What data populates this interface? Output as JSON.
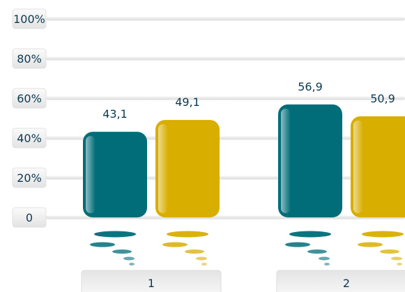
{
  "chart_data": {
    "type": "bar",
    "categories": [
      "1",
      "2"
    ],
    "series": [
      {
        "values": [
          43.1,
          56.9
        ],
        "color": "#006d78"
      },
      {
        "values": [
          49.1,
          50.9
        ],
        "color": "#d8ae00"
      }
    ],
    "value_labels": [
      [
        "43,1",
        "56,9"
      ],
      [
        "49,1",
        "50,9"
      ]
    ],
    "ylim": [
      0,
      100
    ],
    "y_ticks": [
      {
        "value": 0,
        "label": "0"
      },
      {
        "value": 20,
        "label": "20%"
      },
      {
        "value": 40,
        "label": "40%"
      },
      {
        "value": 60,
        "label": "60%"
      },
      {
        "value": 80,
        "label": "80%"
      },
      {
        "value": 100,
        "label": "100%"
      }
    ],
    "grid": true,
    "colors": {
      "text": "#0b3a52",
      "grid": "#e6e6e6",
      "tick_box": "#f1f1f1",
      "category_box": "#eeeeee"
    }
  }
}
